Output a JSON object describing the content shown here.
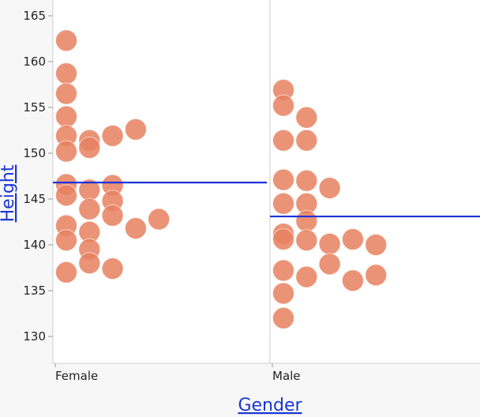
{
  "chart_data": {
    "type": "scatter",
    "xlabel": "Gender",
    "ylabel": "Height",
    "categories": [
      "Female",
      "Male"
    ],
    "yticks": [
      130,
      135,
      140,
      145,
      150,
      155,
      160,
      165
    ],
    "ylim": [
      127,
      167
    ],
    "grid": false,
    "colors": {
      "point": "#e8805f",
      "mean_line": "#1f32d8",
      "axis": "#cfcfcf",
      "plot_bg": "#ffffff"
    },
    "series": [
      {
        "category": "Female",
        "mean": 146.8,
        "points": [
          {
            "slot": 0,
            "y": 162.3
          },
          {
            "slot": 0,
            "y": 158.7
          },
          {
            "slot": 0,
            "y": 156.5
          },
          {
            "slot": 0,
            "y": 154.0
          },
          {
            "slot": 0,
            "y": 151.9
          },
          {
            "slot": 0,
            "y": 150.2
          },
          {
            "slot": 0,
            "y": 146.6
          },
          {
            "slot": 0,
            "y": 145.4
          },
          {
            "slot": 0,
            "y": 142.1
          },
          {
            "slot": 0,
            "y": 140.5
          },
          {
            "slot": 0,
            "y": 137.0
          },
          {
            "slot": 1,
            "y": 151.4
          },
          {
            "slot": 1,
            "y": 150.6
          },
          {
            "slot": 1,
            "y": 146.0
          },
          {
            "slot": 1,
            "y": 143.9
          },
          {
            "slot": 1,
            "y": 141.4
          },
          {
            "slot": 1,
            "y": 139.5
          },
          {
            "slot": 1,
            "y": 138.0
          },
          {
            "slot": 2,
            "y": 151.9
          },
          {
            "slot": 2,
            "y": 146.5
          },
          {
            "slot": 2,
            "y": 144.8
          },
          {
            "slot": 2,
            "y": 143.2
          },
          {
            "slot": 2,
            "y": 137.4
          },
          {
            "slot": 3,
            "y": 152.6
          },
          {
            "slot": 3,
            "y": 141.8
          },
          {
            "slot": 4,
            "y": 142.8
          }
        ]
      },
      {
        "category": "Male",
        "mean": 143.1,
        "points": [
          {
            "slot": 0,
            "y": 156.9
          },
          {
            "slot": 0,
            "y": 155.2
          },
          {
            "slot": 0,
            "y": 151.4
          },
          {
            "slot": 0,
            "y": 147.1
          },
          {
            "slot": 0,
            "y": 144.5
          },
          {
            "slot": 0,
            "y": 141.2
          },
          {
            "slot": 0,
            "y": 140.6
          },
          {
            "slot": 0,
            "y": 137.2
          },
          {
            "slot": 0,
            "y": 134.7
          },
          {
            "slot": 0,
            "y": 132.0
          },
          {
            "slot": 1,
            "y": 153.9
          },
          {
            "slot": 1,
            "y": 151.4
          },
          {
            "slot": 1,
            "y": 147.0
          },
          {
            "slot": 1,
            "y": 144.5
          },
          {
            "slot": 1,
            "y": 142.6
          },
          {
            "slot": 1,
            "y": 140.5
          },
          {
            "slot": 1,
            "y": 136.5
          },
          {
            "slot": 2,
            "y": 146.2
          },
          {
            "slot": 2,
            "y": 140.1
          },
          {
            "slot": 2,
            "y": 137.9
          },
          {
            "slot": 3,
            "y": 140.6
          },
          {
            "slot": 3,
            "y": 136.1
          },
          {
            "slot": 4,
            "y": 140.0
          },
          {
            "slot": 4,
            "y": 136.7
          }
        ]
      }
    ]
  }
}
